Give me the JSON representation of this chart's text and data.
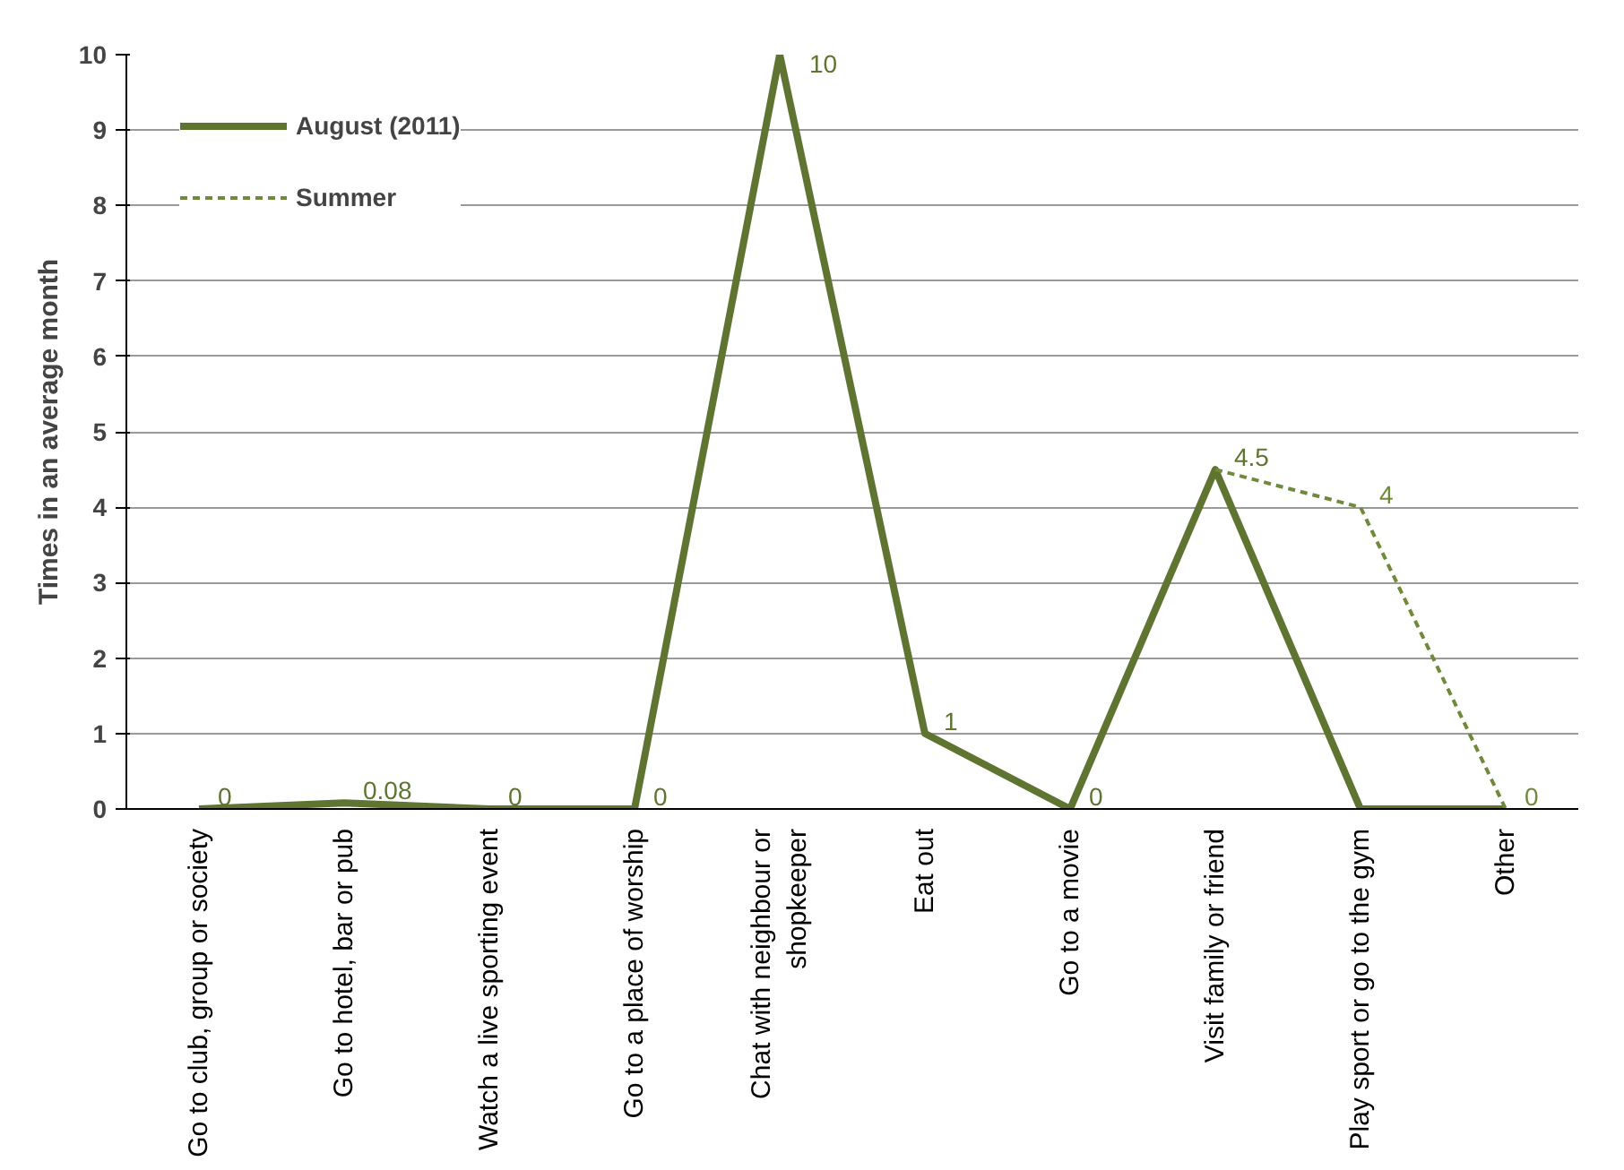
{
  "chart_data": {
    "type": "line",
    "ylabel": "Times in an average month",
    "categories": [
      "Go to club, group or society",
      "Go to hotel, bar or pub",
      "Watch a live sporting event",
      "Go to a place of worship",
      "Chat with neighbour or\nshopkeeper",
      "Eat out",
      "Go to a movie",
      "Visit family or friend",
      "Play sport or go to the gym",
      "Other"
    ],
    "series": [
      {
        "name": "August (2011)",
        "color": "#5e7430",
        "line_style": "solid",
        "values": [
          0,
          0.08,
          0,
          0,
          10,
          1,
          0,
          4.5,
          0,
          0
        ],
        "value_labels": [
          "0",
          "0.08",
          "0",
          "0",
          "10",
          "1",
          "0",
          "4.5",
          null,
          null
        ]
      },
      {
        "name": "Summer",
        "color": "#6f8a3a",
        "line_style": "dashed",
        "values": [
          null,
          null,
          null,
          null,
          null,
          null,
          null,
          4.5,
          4,
          0
        ],
        "value_labels": [
          null,
          null,
          null,
          null,
          null,
          null,
          null,
          null,
          "4",
          "0"
        ]
      }
    ],
    "ylim": [
      0,
      10
    ],
    "yticks": [
      0,
      1,
      2,
      3,
      4,
      5,
      6,
      7,
      8,
      9,
      10
    ],
    "grid": "y",
    "legend": "top left",
    "marker": "none"
  }
}
